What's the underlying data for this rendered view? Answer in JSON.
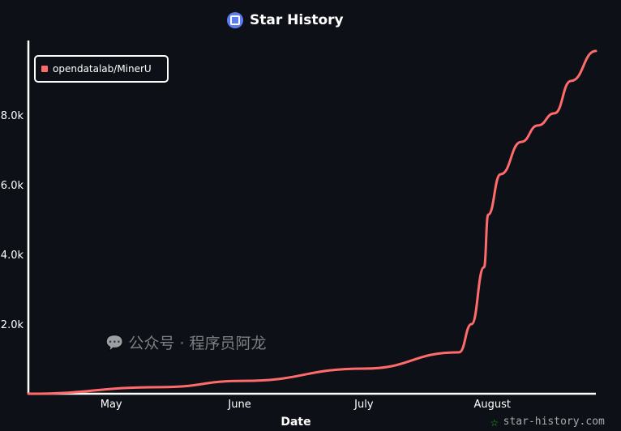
{
  "chart_data": {
    "type": "line",
    "title": "Star History",
    "xlabel": "Date",
    "ylabel": "",
    "x_tick_labels": [
      "May",
      "June",
      "July",
      "August"
    ],
    "y_tick_labels": [
      "2.0k",
      "4.0k",
      "6.0k",
      "8.0k"
    ],
    "y_ticks": [
      2000,
      4000,
      6000,
      8000
    ],
    "ylim": [
      0,
      10000
    ],
    "xlim": [
      "2024-04-11",
      "2024-08-26"
    ],
    "x_ticks": [
      "2024-05-01",
      "2024-06-01",
      "2024-07-01",
      "2024-08-01"
    ],
    "grid": false,
    "legend_position": "top-left",
    "series": [
      {
        "name": "opendatalab/MinerU",
        "color": "#ff6b6b",
        "x": [
          "2024-04-11",
          "2024-05-13",
          "2024-06-02",
          "2024-07-01",
          "2024-07-24",
          "2024-07-27",
          "2024-07-30",
          "2024-07-31",
          "2024-08-03",
          "2024-08-08",
          "2024-08-12",
          "2024-08-16",
          "2024-08-20",
          "2024-08-26"
        ],
        "y": [
          0,
          190,
          370,
          720,
          1190,
          2000,
          3630,
          5140,
          6300,
          7230,
          7700,
          8050,
          8980,
          9840
        ]
      }
    ]
  },
  "watermark": {
    "text": "公众号 · 程序员阿龙",
    "site": "star-history.com"
  },
  "colors": {
    "background": "#0d1017",
    "axis": "#ffffff",
    "logo": "#5b7cf5"
  }
}
